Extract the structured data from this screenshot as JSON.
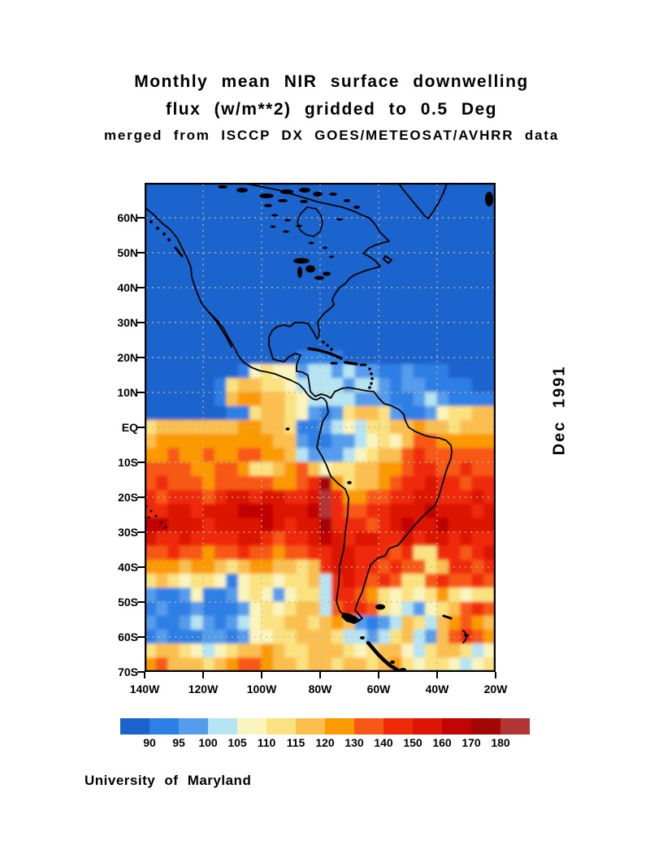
{
  "title": {
    "line1": "Monthly mean NIR surface downwelling",
    "line2": "flux (w/m**2) gridded to 0.5 Deg",
    "line3": "merged from ISCCP DX GOES/METEOSAT/AVHRR data"
  },
  "side_label": "Dec 1991",
  "footer": "University of Maryland",
  "chart_data": {
    "type": "heatmap",
    "title": "Monthly mean NIR surface downwelling flux (w/m**2) gridded to 0.5 Deg",
    "subtitle": "merged from ISCCP DX GOES/METEOSAT/AVHRR data",
    "period": "Dec 1991",
    "units": "w/m**2",
    "source": "University of Maryland",
    "lat_ticks": [
      "60N",
      "50N",
      "40N",
      "30N",
      "20N",
      "10N",
      "EQ",
      "10S",
      "20S",
      "30S",
      "40S",
      "50S",
      "60S",
      "70S"
    ],
    "lon_ticks": [
      "140W",
      "120W",
      "100W",
      "80W",
      "60W",
      "40W",
      "20W"
    ],
    "lat_range_deg": [
      -70,
      70
    ],
    "lon_range_deg": [
      -140,
      -20
    ],
    "grid_on": true,
    "colorbar": {
      "labels": [
        "90",
        "95",
        "100",
        "105",
        "110",
        "115",
        "120",
        "130",
        "140",
        "150",
        "160",
        "170",
        "180"
      ],
      "colors": [
        "#1A63CD",
        "#2E7FE5",
        "#559CEC",
        "#B6E4F2",
        "#FAF4BE",
        "#FAE281",
        "#FABF4F",
        "#FB9A03",
        "#F75818",
        "#EF2A09",
        "#DC1505",
        "#C00504",
        "#A30607",
        "#B13534"
      ]
    },
    "grid": {
      "cols": 30,
      "rows": 35,
      "cell_deg": 4,
      "palette": "abcdefghijklmn",
      "rows_data": [
        "aaaaaaaaaaaaaaaaaaaaaaaaaaaaaa",
        "aaaaaaaaaaaaaaaaaaaaaaaaaaaaaa",
        "aaaaaaaaaaaaaaaaaaaaaaaaaaaaaa",
        "aaaaaaaaaaaaaaaaaaaaaaaaaaaaaa",
        "aaaaaaaaaaaaaaaaaaaaaaaaaaaaaa",
        "aaaaaaaaaaaaaaaaaaaaaaaaaaaaaa",
        "aaaaaaaaaaaaaaaaaaaaaaaaaaaaaa",
        "aaaaaaaaaaaaaaaaaaaaaaaaaaaaaa",
        "aaaaaaaaaaaaaaaaaaaaaaaaaaaaaa",
        "aaaaaaaaaaaaaaaaaaaaaaaaaaaaaa",
        "aaaaaaaaaaaaaaaaaaaaaaaaaaaaaa",
        "aaaaaaaaaaaaaaaaaaaaaaaaaaaaaa",
        "aaaaaaaaaaaaabbbbaaaaaaaaaaaaa",
        "aaaaaaaabefeecddcdccbbcbbbaaaa",
        "aaaaaabfggffeddddcddcbccbbbbaa",
        "aaaaaabghhggfeddddcccbbcdcbbbb",
        "aaaaaaabbfggfecbcfggfcbbceffgg",
        "fggggggghhggfbbcdedffgghggfggg",
        "ghhhhhhhhhhggcbbccdefegiihhhhh",
        "hhihhihhiihhgdcccdefggijiiiiii",
        "iiiihhiihffghigeffgghhijjiijii",
        "ijiiihiiiiihhijmhfgghijjkjjijj",
        "jijjjijkkjkkjjknjhhiijjkkjjjkj",
        "jjkkjkkklllkkklnjiijjkkklkkkjk",
        "llkkkjkkkklkjkkmjjjijklkklkkkk",
        "kjjkjjjjkkjijjklkjkkjjkjkkjkjj",
        "iijiihiijiihiijjkkjjjijffjjijk",
        "hhhghhgfghhggfgjkkjjijiifgjjij",
        "fgfeffebeffeffgdjkjijiffijiiji",
        "cbbcebbcefeceffdjjihfefefhfeff",
        "bcbbcbbbcefefggdijjifedcefgiji",
        "cbbcdcbcdeffggfghgcbcdgfdghihg",
        "bcbbbccbceeffgggfddcdfgdcgijih",
        "fggfedefgghgffgggfefggedfggfde",
        "higggfghiihggfggfggfghfeffedef"
      ]
    }
  }
}
